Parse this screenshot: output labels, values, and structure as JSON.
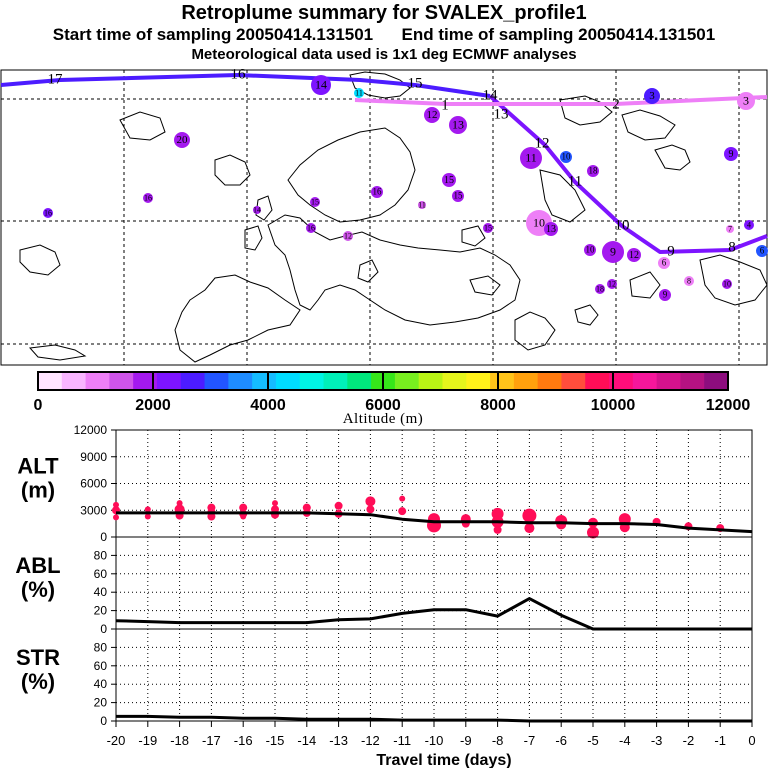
{
  "header": {
    "title": "Retroplume summary for SVALEX_profile1",
    "start_label": "Start time of sampling 20050414.131501",
    "end_label": "End time of sampling 20050414.131501",
    "met_label": "Meteorological data used is 1x1 deg ECMWF analyses"
  },
  "colorbar": {
    "label": "Altitude (m)",
    "ticks": [
      "0",
      "2000",
      "4000",
      "6000",
      "8000",
      "10000",
      "12000"
    ],
    "colors": [
      "#ffe4ff",
      "#f9b5ff",
      "#ee7ff7",
      "#cf54ea",
      "#a419ef",
      "#7d14ff",
      "#4c1cff",
      "#2255ff",
      "#1e8cff",
      "#15bcff",
      "#00dcff",
      "#00f5e4",
      "#00f0b9",
      "#00e77d",
      "#36e61a",
      "#78ee1f",
      "#b9f415",
      "#e5f51c",
      "#fff21a",
      "#ffc41a",
      "#ffa10d",
      "#ff7a0f",
      "#ff4d3c",
      "#ff0d57",
      "#ff0d7a",
      "#f6169b",
      "#d5128d",
      "#b51282",
      "#8d0d7e"
    ]
  },
  "map": {
    "labels": [
      {
        "text": "17",
        "x": 55,
        "y": 80,
        "color": "#000"
      },
      {
        "text": "16",
        "x": 238,
        "y": 75,
        "color": "#000"
      },
      {
        "text": "15",
        "x": 415,
        "y": 84,
        "color": "#000"
      },
      {
        "text": "14",
        "x": 490,
        "y": 96,
        "color": "#000"
      },
      {
        "text": "13",
        "x": 501,
        "y": 115,
        "color": "#000"
      },
      {
        "text": "12",
        "x": 542,
        "y": 144,
        "color": "#000"
      },
      {
        "text": "11",
        "x": 575,
        "y": 182,
        "color": "#000"
      },
      {
        "text": "10",
        "x": 622,
        "y": 226,
        "color": "#000"
      },
      {
        "text": "9",
        "x": 671,
        "y": 252,
        "color": "#000"
      },
      {
        "text": "8",
        "x": 732,
        "y": 248,
        "color": "#000"
      },
      {
        "text": "1",
        "x": 445,
        "y": 106,
        "color": "#000"
      },
      {
        "text": "2",
        "x": 616,
        "y": 105,
        "color": "#000"
      },
      {
        "text": "3",
        "x": 747,
        "y": 101,
        "color": "#000"
      }
    ],
    "clusters": [
      {
        "text": "14",
        "x": 321,
        "y": 85,
        "r": 10,
        "color": "#7d14ff"
      },
      {
        "text": "11",
        "x": 359,
        "y": 93,
        "r": 5,
        "color": "#00dcff"
      },
      {
        "text": "12",
        "x": 432,
        "y": 115,
        "r": 8,
        "color": "#a419ef"
      },
      {
        "text": "13",
        "x": 458,
        "y": 125,
        "r": 9,
        "color": "#a419ef"
      },
      {
        "text": "20",
        "x": 182,
        "y": 140,
        "r": 8,
        "color": "#a419ef"
      },
      {
        "text": "3",
        "x": 652,
        "y": 96,
        "r": 8,
        "color": "#4c1cff"
      },
      {
        "text": "3",
        "x": 746,
        "y": 101,
        "r": 9,
        "color": "#ee7ff7"
      },
      {
        "text": "11",
        "x": 531,
        "y": 158,
        "r": 11,
        "color": "#a419ef"
      },
      {
        "text": "10",
        "x": 566,
        "y": 157,
        "r": 6,
        "color": "#2255ff"
      },
      {
        "text": "18",
        "x": 593,
        "y": 171,
        "r": 6,
        "color": "#a419ef"
      },
      {
        "text": "9",
        "x": 731,
        "y": 154,
        "r": 7,
        "color": "#7d14ff"
      },
      {
        "text": "15",
        "x": 449,
        "y": 180,
        "r": 7,
        "color": "#a419ef"
      },
      {
        "text": "15",
        "x": 458,
        "y": 196,
        "r": 6,
        "color": "#a419ef"
      },
      {
        "text": "16",
        "x": 377,
        "y": 192,
        "r": 6,
        "color": "#a419ef"
      },
      {
        "text": "16",
        "x": 148,
        "y": 198,
        "r": 5,
        "color": "#a419ef"
      },
      {
        "text": "16",
        "x": 48,
        "y": 213,
        "r": 5,
        "color": "#7d14ff"
      },
      {
        "text": "15",
        "x": 315,
        "y": 202,
        "r": 5,
        "color": "#a419ef"
      },
      {
        "text": "11",
        "x": 422,
        "y": 205,
        "r": 4,
        "color": "#cf54ea"
      },
      {
        "text": "14",
        "x": 257,
        "y": 210,
        "r": 4,
        "color": "#a419ef"
      },
      {
        "text": "10",
        "x": 539,
        "y": 223,
        "r": 13,
        "color": "#ee7ff7"
      },
      {
        "text": "13",
        "x": 551,
        "y": 229,
        "r": 7,
        "color": "#a419ef"
      },
      {
        "text": "15",
        "x": 488,
        "y": 228,
        "r": 5,
        "color": "#a419ef"
      },
      {
        "text": "16",
        "x": 311,
        "y": 228,
        "r": 5,
        "color": "#a419ef"
      },
      {
        "text": "12",
        "x": 348,
        "y": 236,
        "r": 5,
        "color": "#cf54ea"
      },
      {
        "text": "7",
        "x": 730,
        "y": 229,
        "r": 4,
        "color": "#ee7ff7"
      },
      {
        "text": "4",
        "x": 749,
        "y": 225,
        "r": 5,
        "color": "#7d14ff"
      },
      {
        "text": "9",
        "x": 613,
        "y": 252,
        "r": 11,
        "color": "#a419ef"
      },
      {
        "text": "10",
        "x": 590,
        "y": 250,
        "r": 6,
        "color": "#a419ef"
      },
      {
        "text": "12",
        "x": 634,
        "y": 255,
        "r": 7,
        "color": "#a419ef"
      },
      {
        "text": "6",
        "x": 664,
        "y": 263,
        "r": 6,
        "color": "#ee7ff7"
      },
      {
        "text": "6",
        "x": 762,
        "y": 251,
        "r": 6,
        "color": "#2255ff"
      },
      {
        "text": "8",
        "x": 689,
        "y": 281,
        "r": 5,
        "color": "#ee7ff7"
      },
      {
        "text": "10",
        "x": 727,
        "y": 284,
        "r": 5,
        "color": "#a419ef"
      },
      {
        "text": "9",
        "x": 665,
        "y": 295,
        "r": 6,
        "color": "#a419ef"
      },
      {
        "text": "12",
        "x": 612,
        "y": 284,
        "r": 5,
        "color": "#a419ef"
      },
      {
        "text": "18",
        "x": 600,
        "y": 289,
        "r": 5,
        "color": "#a419ef"
      }
    ]
  },
  "chart_data": [
    {
      "name": "ALT",
      "type": "line+scatter",
      "ylabel": "ALT\n(m)",
      "ylim": [
        0,
        12000
      ],
      "yticks": [
        0,
        3000,
        6000,
        9000,
        12000
      ],
      "line_x": [
        -20,
        -19,
        -18,
        -17,
        -16,
        -15,
        -14,
        -13,
        -12,
        -11,
        -10,
        -9,
        -8,
        -7,
        -6,
        -5,
        -4,
        -3,
        -2,
        -1,
        0
      ],
      "line_y": [
        2700,
        2700,
        2700,
        2700,
        2700,
        2700,
        2700,
        2600,
        2500,
        2000,
        1700,
        1700,
        1700,
        1600,
        1600,
        1500,
        1500,
        1400,
        1000,
        800,
        600
      ],
      "points": [
        {
          "x": -20,
          "y": 3600,
          "r": 3
        },
        {
          "x": -20,
          "y": 3000,
          "r": 4
        },
        {
          "x": -20,
          "y": 2200,
          "r": 3
        },
        {
          "x": -19,
          "y": 3100,
          "r": 3
        },
        {
          "x": -19,
          "y": 2300,
          "r": 3
        },
        {
          "x": -18,
          "y": 3800,
          "r": 3
        },
        {
          "x": -18,
          "y": 3100,
          "r": 5
        },
        {
          "x": -18,
          "y": 2400,
          "r": 4
        },
        {
          "x": -17,
          "y": 3300,
          "r": 4
        },
        {
          "x": -17,
          "y": 2800,
          "r": 4
        },
        {
          "x": -17,
          "y": 2300,
          "r": 4
        },
        {
          "x": -16,
          "y": 3300,
          "r": 4
        },
        {
          "x": -16,
          "y": 2600,
          "r": 4
        },
        {
          "x": -16,
          "y": 2300,
          "r": 3
        },
        {
          "x": -15,
          "y": 3800,
          "r": 3
        },
        {
          "x": -15,
          "y": 3100,
          "r": 4
        },
        {
          "x": -15,
          "y": 2500,
          "r": 4
        },
        {
          "x": -14,
          "y": 3300,
          "r": 4
        },
        {
          "x": -14,
          "y": 2700,
          "r": 4
        },
        {
          "x": -13,
          "y": 3500,
          "r": 4
        },
        {
          "x": -13,
          "y": 2600,
          "r": 4
        },
        {
          "x": -12,
          "y": 4000,
          "r": 5
        },
        {
          "x": -12,
          "y": 3100,
          "r": 4
        },
        {
          "x": -11,
          "y": 4300,
          "r": 3
        },
        {
          "x": -11,
          "y": 2900,
          "r": 4
        },
        {
          "x": -10,
          "y": 2000,
          "r": 6
        },
        {
          "x": -10,
          "y": 1300,
          "r": 7
        },
        {
          "x": -9,
          "y": 2000,
          "r": 5
        },
        {
          "x": -9,
          "y": 1500,
          "r": 4
        },
        {
          "x": -8,
          "y": 2600,
          "r": 6
        },
        {
          "x": -8,
          "y": 1700,
          "r": 6
        },
        {
          "x": -8,
          "y": 800,
          "r": 4
        },
        {
          "x": -7,
          "y": 2400,
          "r": 7
        },
        {
          "x": -7,
          "y": 1000,
          "r": 5
        },
        {
          "x": -6,
          "y": 1800,
          "r": 6
        },
        {
          "x": -6,
          "y": 1400,
          "r": 5
        },
        {
          "x": -5,
          "y": 1600,
          "r": 5
        },
        {
          "x": -5,
          "y": 500,
          "r": 6
        },
        {
          "x": -4,
          "y": 2000,
          "r": 6
        },
        {
          "x": -4,
          "y": 1100,
          "r": 5
        },
        {
          "x": -3,
          "y": 1700,
          "r": 4
        },
        {
          "x": -2,
          "y": 1200,
          "r": 4
        },
        {
          "x": -1,
          "y": 1000,
          "r": 4
        }
      ]
    },
    {
      "name": "ABL",
      "type": "line",
      "ylabel": "ABL\n(%)",
      "ylim": [
        0,
        100
      ],
      "yticks": [
        0,
        20,
        40,
        60,
        80
      ],
      "x": [
        -20,
        -19,
        -18,
        -17,
        -16,
        -15,
        -14,
        -13,
        -12,
        -11,
        -10,
        -9,
        -8,
        -7,
        -6,
        -5,
        -4,
        -3,
        -2,
        -1,
        0
      ],
      "y": [
        9,
        8,
        7,
        7,
        7,
        7,
        7,
        10,
        11,
        17,
        21,
        21,
        14,
        33,
        15,
        0,
        0,
        0,
        0,
        0,
        0
      ]
    },
    {
      "name": "STR",
      "type": "line",
      "ylabel": "STR\n(%)",
      "ylim": [
        0,
        100
      ],
      "yticks": [
        0,
        20,
        40,
        60,
        80
      ],
      "x": [
        -20,
        -19,
        -18,
        -17,
        -16,
        -15,
        -14,
        -13,
        -12,
        -11,
        -10,
        -9,
        -8,
        -7,
        -6,
        -5,
        -4,
        -3,
        -2,
        -1,
        0
      ],
      "y": [
        5,
        5,
        4,
        4,
        3,
        3,
        2,
        2,
        2,
        1,
        1,
        1,
        1,
        0,
        0,
        0,
        0,
        0,
        0,
        0,
        0
      ]
    }
  ],
  "xaxis": {
    "label": "Travel time (days)",
    "ticks": [
      "-20",
      "-19",
      "-18",
      "-17",
      "-16",
      "-15",
      "-14",
      "-13",
      "-12",
      "-11",
      "-10",
      "-9",
      "-8",
      "-7",
      "-6",
      "-5",
      "-4",
      "-3",
      "-2",
      "-1",
      "0"
    ]
  }
}
